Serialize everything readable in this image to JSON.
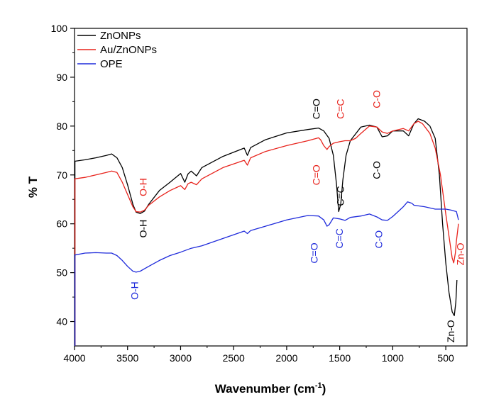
{
  "chart_data": {
    "type": "line",
    "xlabel": "Wavenumber (cm",
    "xlabel_sup": "-1",
    "xlabel_close": ")",
    "ylabel": "% T",
    "xlim": [
      4000,
      300
    ],
    "ylim": [
      35,
      100
    ],
    "x_reversed": true,
    "x_ticks": [
      4000,
      3500,
      3000,
      2500,
      2000,
      1500,
      1000,
      500
    ],
    "y_ticks": [
      40,
      50,
      60,
      70,
      80,
      90,
      100
    ],
    "legend_position": "top-left",
    "grid": false,
    "series": [
      {
        "name": "ZnONPs",
        "color": "#000000",
        "points": [
          [
            4000,
            72.8
          ],
          [
            3900,
            73.1
          ],
          [
            3800,
            73.5
          ],
          [
            3700,
            74.0
          ],
          [
            3650,
            74.3
          ],
          [
            3600,
            73.5
          ],
          [
            3550,
            71.5
          ],
          [
            3500,
            68.0
          ],
          [
            3450,
            64.0
          ],
          [
            3420,
            62.4
          ],
          [
            3380,
            62.1
          ],
          [
            3340,
            62.6
          ],
          [
            3300,
            64.0
          ],
          [
            3200,
            66.8
          ],
          [
            3100,
            68.5
          ],
          [
            3000,
            70.3
          ],
          [
            2960,
            68.5
          ],
          [
            2930,
            70.2
          ],
          [
            2900,
            70.8
          ],
          [
            2850,
            69.8
          ],
          [
            2800,
            71.5
          ],
          [
            2600,
            73.8
          ],
          [
            2400,
            75.5
          ],
          [
            2370,
            74.0
          ],
          [
            2340,
            75.6
          ],
          [
            2200,
            77.2
          ],
          [
            2000,
            78.6
          ],
          [
            1800,
            79.3
          ],
          [
            1700,
            79.6
          ],
          [
            1650,
            79.0
          ],
          [
            1600,
            77.5
          ],
          [
            1560,
            74.0
          ],
          [
            1530,
            68.0
          ],
          [
            1510,
            62.5
          ],
          [
            1490,
            64.0
          ],
          [
            1470,
            69.0
          ],
          [
            1440,
            74.0
          ],
          [
            1400,
            77.0
          ],
          [
            1300,
            79.8
          ],
          [
            1220,
            80.2
          ],
          [
            1150,
            79.8
          ],
          [
            1100,
            77.8
          ],
          [
            1050,
            78.0
          ],
          [
            1000,
            79.0
          ],
          [
            900,
            79.0
          ],
          [
            850,
            78.0
          ],
          [
            820,
            79.5
          ],
          [
            800,
            80.5
          ],
          [
            760,
            81.5
          ],
          [
            700,
            81.0
          ],
          [
            650,
            80.0
          ],
          [
            600,
            77.5
          ],
          [
            560,
            70.0
          ],
          [
            530,
            60.0
          ],
          [
            500,
            52.0
          ],
          [
            470,
            46.0
          ],
          [
            440,
            42.0
          ],
          [
            420,
            41.2
          ],
          [
            405,
            44.0
          ],
          [
            395,
            48.5
          ]
        ]
      },
      {
        "name": "Au/ZnONPs",
        "color": "#e8231c",
        "points": [
          [
            4000,
            69.2
          ],
          [
            3900,
            69.5
          ],
          [
            3800,
            70.0
          ],
          [
            3700,
            70.5
          ],
          [
            3650,
            70.8
          ],
          [
            3600,
            70.5
          ],
          [
            3550,
            68.5
          ],
          [
            3500,
            66.0
          ],
          [
            3450,
            63.5
          ],
          [
            3420,
            62.5
          ],
          [
            3380,
            62.4
          ],
          [
            3340,
            62.8
          ],
          [
            3300,
            63.8
          ],
          [
            3200,
            65.5
          ],
          [
            3100,
            66.8
          ],
          [
            3000,
            67.8
          ],
          [
            2960,
            67.0
          ],
          [
            2930,
            68.2
          ],
          [
            2900,
            68.5
          ],
          [
            2850,
            68.0
          ],
          [
            2800,
            69.2
          ],
          [
            2600,
            71.5
          ],
          [
            2400,
            73.0
          ],
          [
            2370,
            72.0
          ],
          [
            2340,
            73.5
          ],
          [
            2200,
            74.8
          ],
          [
            2000,
            76.0
          ],
          [
            1800,
            77.0
          ],
          [
            1700,
            77.6
          ],
          [
            1680,
            77.2
          ],
          [
            1650,
            76.0
          ],
          [
            1620,
            75.2
          ],
          [
            1600,
            75.8
          ],
          [
            1560,
            76.5
          ],
          [
            1500,
            76.8
          ],
          [
            1450,
            77.0
          ],
          [
            1400,
            77.0
          ],
          [
            1350,
            77.5
          ],
          [
            1300,
            78.5
          ],
          [
            1220,
            80.0
          ],
          [
            1150,
            79.8
          ],
          [
            1100,
            78.8
          ],
          [
            1050,
            78.5
          ],
          [
            1000,
            79.0
          ],
          [
            900,
            79.5
          ],
          [
            850,
            79.0
          ],
          [
            800,
            80.5
          ],
          [
            760,
            81.0
          ],
          [
            720,
            80.5
          ],
          [
            650,
            78.5
          ],
          [
            600,
            75.5
          ],
          [
            550,
            70.0
          ],
          [
            500,
            62.0
          ],
          [
            460,
            56.0
          ],
          [
            440,
            53.0
          ],
          [
            425,
            52.0
          ],
          [
            410,
            54.0
          ],
          [
            400,
            56.5
          ],
          [
            380,
            60.0
          ]
        ]
      },
      {
        "name": "OPE",
        "color": "#1f2bdb",
        "points": [
          [
            4000,
            53.6
          ],
          [
            3900,
            54.0
          ],
          [
            3800,
            54.1
          ],
          [
            3700,
            54.0
          ],
          [
            3650,
            54.0
          ],
          [
            3600,
            53.5
          ],
          [
            3550,
            52.5
          ],
          [
            3500,
            51.3
          ],
          [
            3450,
            50.3
          ],
          [
            3420,
            50.1
          ],
          [
            3380,
            50.3
          ],
          [
            3300,
            51.3
          ],
          [
            3200,
            52.5
          ],
          [
            3100,
            53.5
          ],
          [
            3000,
            54.2
          ],
          [
            2900,
            55.0
          ],
          [
            2800,
            55.5
          ],
          [
            2600,
            57.0
          ],
          [
            2400,
            58.5
          ],
          [
            2370,
            58.0
          ],
          [
            2340,
            58.6
          ],
          [
            2200,
            59.5
          ],
          [
            2000,
            60.8
          ],
          [
            1800,
            61.7
          ],
          [
            1700,
            61.6
          ],
          [
            1650,
            60.8
          ],
          [
            1620,
            59.5
          ],
          [
            1600,
            59.8
          ],
          [
            1560,
            61.2
          ],
          [
            1500,
            61.0
          ],
          [
            1450,
            60.7
          ],
          [
            1400,
            61.3
          ],
          [
            1300,
            61.6
          ],
          [
            1220,
            62.0
          ],
          [
            1150,
            61.4
          ],
          [
            1100,
            60.8
          ],
          [
            1050,
            60.7
          ],
          [
            1000,
            61.5
          ],
          [
            950,
            62.5
          ],
          [
            900,
            63.5
          ],
          [
            860,
            64.5
          ],
          [
            820,
            64.2
          ],
          [
            800,
            63.8
          ],
          [
            700,
            63.5
          ],
          [
            600,
            63.0
          ],
          [
            500,
            63.0
          ],
          [
            450,
            62.8
          ],
          [
            400,
            62.5
          ],
          [
            380,
            60.8
          ]
        ]
      }
    ],
    "annotations": [
      {
        "text": "O-H",
        "color": "#e8231c",
        "x": 3320,
        "y": 67.5,
        "rotate": -90
      },
      {
        "text": "O-H",
        "color": "#000000",
        "x": 3320,
        "y": 59.0,
        "rotate": -90
      },
      {
        "text": "O-H",
        "color": "#1f2bdb",
        "x": 3400,
        "y": 46.3,
        "rotate": -90
      },
      {
        "text": "C=O",
        "color": "#000000",
        "x": 1690,
        "y": 83.5,
        "rotate": -90
      },
      {
        "text": "C=C",
        "color": "#e8231c",
        "x": 1460,
        "y": 83.5,
        "rotate": -90
      },
      {
        "text": "C-O",
        "color": "#e8231c",
        "x": 1120,
        "y": 85.5,
        "rotate": -90
      },
      {
        "text": "C=O",
        "color": "#e8231c",
        "x": 1690,
        "y": 70.0,
        "rotate": -90
      },
      {
        "text": "C=C",
        "color": "#000000",
        "x": 1460,
        "y": 65.7,
        "rotate": -90
      },
      {
        "text": "C-O",
        "color": "#000000",
        "x": 1120,
        "y": 71.0,
        "rotate": -90
      },
      {
        "text": "C=O",
        "color": "#1f2bdb",
        "x": 1710,
        "y": 54.0,
        "rotate": -90
      },
      {
        "text": "C=C",
        "color": "#1f2bdb",
        "x": 1470,
        "y": 57.0,
        "rotate": -90
      },
      {
        "text": "C-O",
        "color": "#1f2bdb",
        "x": 1100,
        "y": 56.8,
        "rotate": -90
      },
      {
        "text": "Zn-O",
        "color": "#e8231c",
        "x": 330,
        "y": 53.8,
        "rotate": -90
      },
      {
        "text": "Zn-O",
        "color": "#000000",
        "x": 420,
        "y": 38.0,
        "rotate": -90
      }
    ]
  }
}
